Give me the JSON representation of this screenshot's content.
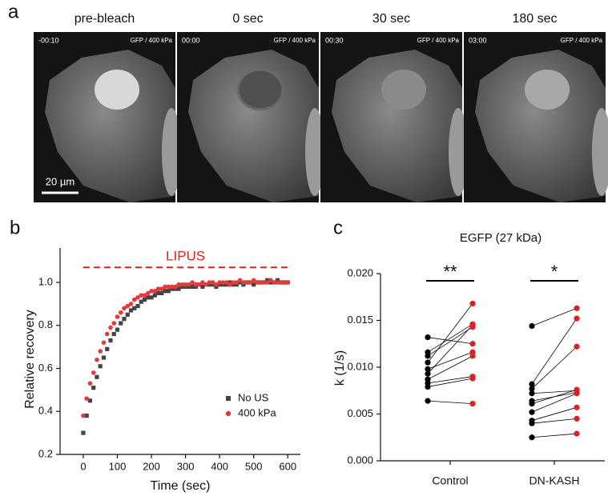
{
  "panel_labels": [
    "a",
    "b",
    "c"
  ],
  "images": [
    {
      "title": "pre-bleach",
      "time": "-00:10",
      "channel": "GFP / 400 kPa"
    },
    {
      "title": "0 sec",
      "time": "00:00",
      "channel": "GFP / 400 kPa"
    },
    {
      "title": "30 sec",
      "time": "00:30",
      "channel": "GFP / 400 kPa"
    },
    {
      "title": "180 sec",
      "time": "03:00",
      "channel": "GFP / 400 kPa"
    }
  ],
  "scale_bar": "20 µm",
  "chart_data": [
    {
      "type": "scatter",
      "xlabel": "Time (sec)",
      "ylabel": "Relative recovery",
      "x": [
        0,
        10,
        20,
        30,
        40,
        50,
        60,
        70,
        80,
        90,
        100,
        110,
        120,
        130,
        140,
        150,
        160,
        170,
        180,
        190,
        200,
        210,
        220,
        230,
        240,
        250,
        260,
        270,
        280,
        290,
        300,
        310,
        320,
        330,
        340,
        350,
        360,
        370,
        380,
        390,
        400,
        410,
        420,
        430,
        440,
        450,
        460,
        470,
        480,
        490,
        500,
        510,
        520,
        530,
        540,
        550,
        560,
        570,
        580,
        590,
        600
      ],
      "series": [
        {
          "name": "No US",
          "color": "#444444",
          "marker": "square",
          "values": [
            0.3,
            0.38,
            0.45,
            0.51,
            0.56,
            0.61,
            0.65,
            0.69,
            0.73,
            0.76,
            0.78,
            0.81,
            0.83,
            0.85,
            0.87,
            0.88,
            0.89,
            0.91,
            0.92,
            0.93,
            0.93,
            0.94,
            0.95,
            0.95,
            0.96,
            0.96,
            0.97,
            0.97,
            0.97,
            0.98,
            0.98,
            0.98,
            0.98,
            0.98,
            0.99,
            0.98,
            0.99,
            0.99,
            0.99,
            0.98,
            0.99,
            0.99,
            0.99,
            1.0,
            0.99,
            0.99,
            1.0,
            0.99,
            1.0,
            1.0,
            0.99,
            1.0,
            1.0,
            1.0,
            1.01,
            1.0,
            1.0,
            1.01,
            1.0,
            1.0,
            1.0
          ]
        },
        {
          "name": "400 kPa",
          "color": "#e8393a",
          "marker": "circle",
          "values": [
            0.38,
            0.46,
            0.53,
            0.58,
            0.64,
            0.68,
            0.72,
            0.76,
            0.79,
            0.81,
            0.84,
            0.86,
            0.88,
            0.89,
            0.9,
            0.92,
            0.93,
            0.94,
            0.94,
            0.95,
            0.96,
            0.96,
            0.97,
            0.97,
            0.98,
            0.98,
            0.98,
            0.98,
            0.99,
            0.99,
            0.99,
            0.99,
            1.0,
            0.99,
            0.99,
            1.0,
            0.99,
            1.0,
            1.0,
            0.99,
            1.0,
            1.0,
            1.0,
            0.99,
            1.0,
            1.0,
            1.01,
            1.0,
            1.0,
            1.0,
            1.01,
            1.0,
            1.0,
            1.0,
            1.0,
            1.01,
            1.0,
            1.0,
            1.0,
            1.0,
            1.0
          ]
        }
      ],
      "xlim": [
        -68,
        637
      ],
      "ylim": [
        0.2,
        1.16
      ],
      "xticks": [
        0,
        100,
        200,
        300,
        400,
        500,
        600
      ],
      "yticks": [
        0.2,
        0.4,
        0.6,
        0.8,
        {
          "value": 1,
          "label": "1.0"
        }
      ],
      "legend": "lower right",
      "annotation": {
        "text": "LIPUS",
        "y": 1.07,
        "x": [
          0,
          600
        ],
        "color": "#e02020"
      }
    },
    {
      "type": "paired",
      "title": "EGFP (27 kDa)",
      "ylabel": "k (1/s)",
      "categories": [
        "Control",
        "DN-KASH"
      ],
      "before": [
        [
          0.0132,
          0.0116,
          0.0112,
          0.0105,
          0.0098,
          0.0093,
          0.0087,
          0.0083,
          0.0079,
          0.0064
        ],
        [
          0.0144,
          0.0082,
          0.0077,
          0.0072,
          0.0064,
          0.0061,
          0.0052,
          0.0043,
          0.004,
          0.0025
        ]
      ],
      "after": [
        [
          0.0125,
          0.0146,
          0.0143,
          0.0168,
          0.0116,
          0.0145,
          0.0112,
          0.009,
          0.0088,
          0.0061
        ],
        [
          0.0163,
          0.0152,
          0.0122,
          0.0075,
          0.0073,
          0.0076,
          0.0072,
          0.0057,
          0.0045,
          0.0029
        ]
      ],
      "colors": {
        "before": "#000000",
        "after": "#e02020"
      },
      "significance": [
        "**",
        "*"
      ],
      "ylim": [
        0,
        0.02
      ],
      "yticks": [
        {
          "value": 0,
          "label": "0.000"
        },
        {
          "value": 0.005,
          "label": "0.005"
        },
        {
          "value": 0.01,
          "label": "0.010"
        },
        {
          "value": 0.015,
          "label": "0.015"
        },
        {
          "value": 0.02,
          "label": "0.020"
        }
      ]
    }
  ]
}
